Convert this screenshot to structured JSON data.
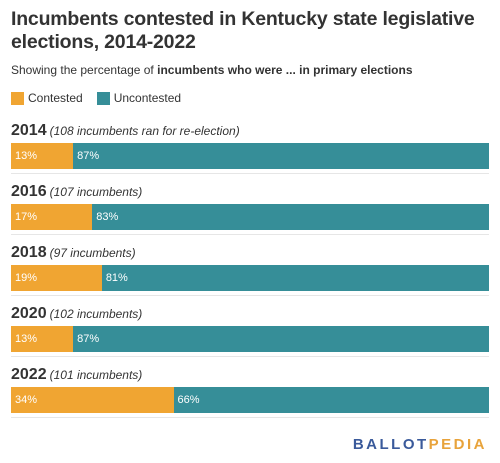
{
  "title": "Incumbents contested in Kentucky state legislative elections, 2014-2022",
  "subtitle": {
    "prefix": "Showing the percentage of ",
    "bold": "incumbents who were ... in primary elections"
  },
  "legend": [
    {
      "label": "Contested",
      "color": "#f0a532"
    },
    {
      "label": "Uncontested",
      "color": "#368e98"
    }
  ],
  "logo": {
    "part1": "BALLOT",
    "part2": "PEDIA"
  },
  "chart_data": {
    "type": "bar",
    "stacked": true,
    "orientation": "horizontal",
    "categories": [
      "2014",
      "2016",
      "2018",
      "2020",
      "2022"
    ],
    "notes": [
      "(108 incumbents ran for re-election)",
      "(107 incumbents)",
      "(97 incumbents)",
      "(102 incumbents)",
      "(101 incumbents)"
    ],
    "series": [
      {
        "name": "Contested",
        "color": "#f0a532",
        "values": [
          13,
          17,
          19,
          13,
          34
        ],
        "labels": [
          "13%",
          "17%",
          "19%",
          "13%",
          "34%"
        ]
      },
      {
        "name": "Uncontested",
        "color": "#368e98",
        "values": [
          87,
          83,
          81,
          87,
          66
        ],
        "labels": [
          "87%",
          "83%",
          "81%",
          "87%",
          "66%"
        ]
      }
    ],
    "xlim": [
      0,
      100
    ]
  }
}
